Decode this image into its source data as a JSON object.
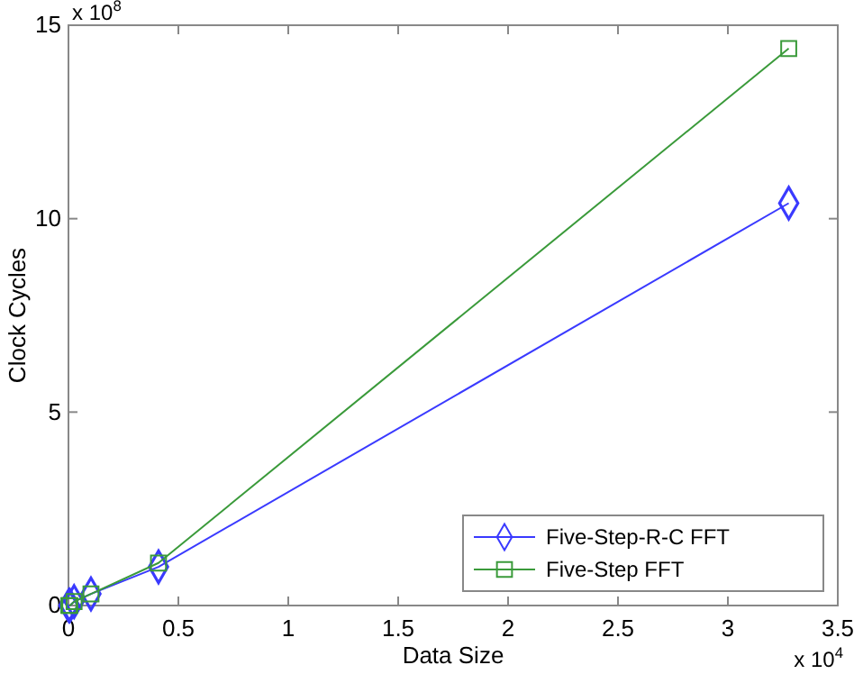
{
  "chart_data": {
    "type": "line",
    "xlabel": "Data Size",
    "ylabel": "Clock Cycles",
    "annotations": [
      "x 10$^{8}$",
      "x 10$^{4}$"
    ],
    "xlim": [
      0,
      3.5
    ],
    "xticks": [
      0,
      0.5,
      1,
      1.5,
      2,
      2.5,
      3,
      3.5
    ],
    "ylim": [
      0,
      15
    ],
    "yticks": [
      0,
      5,
      10,
      15
    ],
    "grid": false,
    "legend": "bottom right",
    "series": [
      {
        "name": "Five-Step-R-C FFT",
        "color": "#3a3aff",
        "marker": "diamond",
        "x": [
          0.0016,
          0.0064,
          0.0256,
          0.1024,
          0.4096,
          3.2768
        ],
        "values": [
          0,
          0,
          0.1,
          0.3,
          1.0,
          10.4
        ]
      },
      {
        "name": "Five-Step FFT",
        "color": "#3a9a3a",
        "marker": "square",
        "x": [
          0.0016,
          0.0064,
          0.0256,
          0.1024,
          0.4096,
          3.2768
        ],
        "values": [
          0,
          0,
          0.1,
          0.3,
          1.1,
          14.4
        ]
      }
    ]
  }
}
